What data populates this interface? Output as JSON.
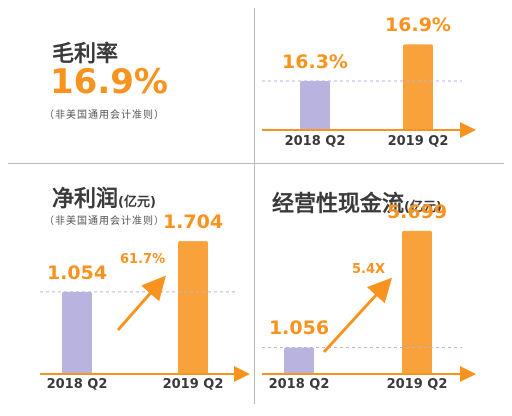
{
  "panels": {
    "gross_margin": {
      "title": "毛利率",
      "value": "16.9%",
      "note": "（非美国通用会计准则）"
    },
    "net_profit": {
      "title": "净利润",
      "unit": "(亿元)",
      "note": "（非美国通用会计准则）"
    },
    "operating_cash_flow": {
      "title": "经营性现金流",
      "unit": "(亿元)"
    }
  },
  "chart_data": [
    {
      "type": "bar",
      "categories": [
        "2018 Q2",
        "2019 Q2"
      ],
      "values": [
        16.3,
        16.9
      ],
      "data_labels": [
        "16.3%",
        "16.9%"
      ],
      "ylim": [
        15.5,
        17.2
      ],
      "colors": [
        "#b9b3e0",
        "#f9a23c"
      ],
      "growth_label": ""
    },
    {
      "type": "bar",
      "categories": [
        "2018 Q2",
        "2019 Q2"
      ],
      "values": [
        1.054,
        1.704
      ],
      "data_labels": [
        "1.054",
        "1.704"
      ],
      "ylim": [
        0,
        1.95
      ],
      "colors": [
        "#b9b3e0",
        "#f9a23c"
      ],
      "growth_label": "61.7%"
    },
    {
      "type": "bar",
      "categories": [
        "2018 Q2",
        "2019 Q2"
      ],
      "values": [
        1.056,
        5.699
      ],
      "data_labels": [
        "1.056",
        "5.699"
      ],
      "ylim": [
        0,
        6.05
      ],
      "colors": [
        "#b9b3e0",
        "#f9a23c"
      ],
      "growth_label": "5.4X"
    }
  ],
  "colors": {
    "accent": "#f7931e",
    "bar_2018": "#b9b3e0",
    "bar_2019": "#f9a23c",
    "axis": "#f7931e",
    "guide": "#b9b3e0",
    "text": "#3a3a3a"
  }
}
